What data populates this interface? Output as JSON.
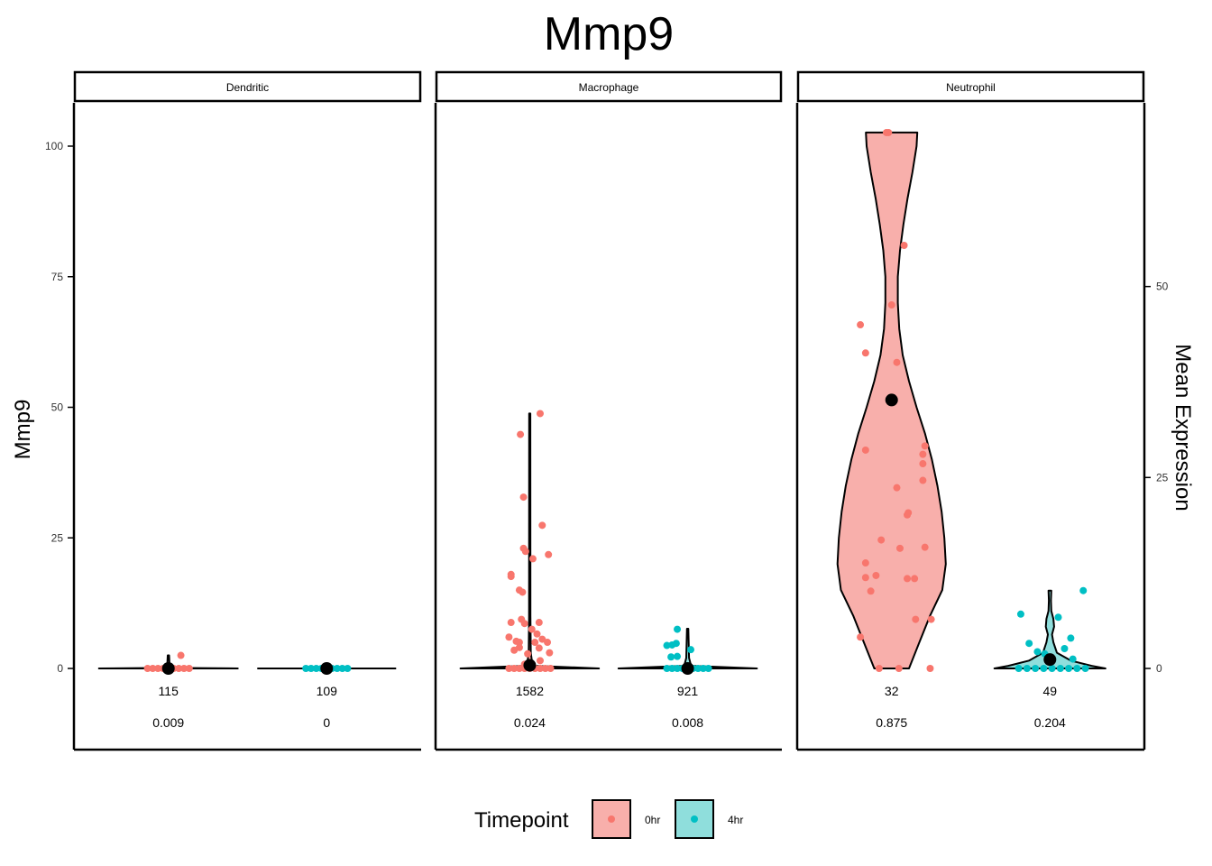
{
  "chart_data": {
    "type": "violin",
    "title": "Mmp9",
    "ylabel": "Mmp9",
    "y2label": "Mean Expression",
    "ylim": [
      -15,
      108
    ],
    "yticks": [
      0,
      25,
      50,
      75,
      100
    ],
    "y2_scale_factor": 0.6838,
    "y2ticks": [
      0,
      25,
      50
    ],
    "legend": {
      "title": "Timepoint",
      "position": "bottom",
      "items": [
        {
          "label": "0hr",
          "fill": "#F8AFAB",
          "point": "#F8766D"
        },
        {
          "label": "4hr",
          "fill": "#8FDEDC",
          "point": "#00BFC4"
        }
      ]
    },
    "groups": [
      "0hr",
      "4hr"
    ],
    "panels": [
      {
        "name": "Dendritic",
        "violins": [
          {
            "group": "0hr",
            "max": 2.5,
            "mean_scaled": 0.0,
            "n": "115",
            "frac": "0.009",
            "profile": [
              [
                0,
                1
              ],
              [
                0.1,
                0.02
              ],
              [
                1,
                0.015
              ],
              [
                2.5,
                0.01
              ]
            ],
            "points": [
              [
                -0.2,
                0
              ],
              [
                -0.15,
                0
              ],
              [
                -0.1,
                0
              ],
              [
                -0.05,
                0
              ],
              [
                0.0,
                0
              ],
              [
                0.05,
                0
              ],
              [
                0.1,
                0
              ],
              [
                0.15,
                0
              ],
              [
                0.2,
                0
              ],
              [
                0.12,
                2.5
              ]
            ]
          },
          {
            "group": "4hr",
            "max": 0,
            "mean_scaled": 0.0,
            "n": "109",
            "frac": "0",
            "profile": [
              [
                0,
                1
              ]
            ],
            "points": [
              [
                -0.2,
                0
              ],
              [
                -0.15,
                0
              ],
              [
                -0.1,
                0
              ],
              [
                -0.05,
                0
              ],
              [
                0.0,
                0
              ],
              [
                0.05,
                0
              ],
              [
                0.1,
                0
              ],
              [
                0.15,
                0
              ],
              [
                0.2,
                0
              ]
            ]
          }
        ]
      },
      {
        "name": "Macrophage",
        "violins": [
          {
            "group": "0hr",
            "max": 48.8,
            "mean_scaled": 0.6,
            "n": "1582",
            "frac": "0.024",
            "profile": [
              [
                0,
                1
              ],
              [
                0.5,
                0.08
              ],
              [
                1.5,
                0.03
              ],
              [
                3,
                0.015
              ],
              [
                10,
                0.01
              ],
              [
                48.8,
                0.008
              ]
            ],
            "points": [
              [
                -0.2,
                0
              ],
              [
                -0.15,
                0
              ],
              [
                -0.1,
                0
              ],
              [
                -0.05,
                0
              ],
              [
                0.0,
                0
              ],
              [
                0.05,
                0
              ],
              [
                0.1,
                0
              ],
              [
                0.15,
                0
              ],
              [
                0.2,
                0
              ],
              [
                0.1,
                48.8
              ],
              [
                -0.09,
                44.8
              ],
              [
                -0.06,
                32.8
              ],
              [
                -0.04,
                22.4
              ],
              [
                -0.06,
                23.0
              ],
              [
                -0.18,
                17.6
              ],
              [
                -0.18,
                18.0
              ],
              [
                0.12,
                27.4
              ],
              [
                0.18,
                21.8
              ],
              [
                0.03,
                21.0
              ],
              [
                -0.1,
                15.0
              ],
              [
                -0.07,
                14.6
              ],
              [
                -0.2,
                6.0
              ],
              [
                -0.1,
                5.0
              ],
              [
                -0.05,
                8.6
              ],
              [
                0.09,
                8.8
              ],
              [
                -0.08,
                9.4
              ],
              [
                -0.1,
                4.0
              ],
              [
                0.05,
                5.0
              ],
              [
                -0.15,
                3.5
              ],
              [
                0.19,
                3.0
              ],
              [
                -0.18,
                8.8
              ],
              [
                0.12,
                5.6
              ],
              [
                0.07,
                6.6
              ],
              [
                -0.13,
                5.2
              ],
              [
                0.02,
                7.5
              ],
              [
                0.09,
                3.9
              ],
              [
                -0.02,
                2.8
              ],
              [
                0.17,
                5.0
              ],
              [
                -0.05,
                0.8
              ],
              [
                0.1,
                1.5
              ]
            ]
          },
          {
            "group": "4hr",
            "max": 7.6,
            "mean_scaled": 0.0,
            "n": "921",
            "frac": "0.008",
            "profile": [
              [
                0,
                1
              ],
              [
                0.5,
                0.05
              ],
              [
                2,
                0.02
              ],
              [
                7.6,
                0.01
              ]
            ],
            "points": [
              [
                -0.2,
                0
              ],
              [
                -0.15,
                0
              ],
              [
                -0.1,
                0
              ],
              [
                -0.05,
                0
              ],
              [
                0.0,
                0
              ],
              [
                0.05,
                0
              ],
              [
                0.1,
                0
              ],
              [
                0.15,
                0
              ],
              [
                0.2,
                0
              ],
              [
                -0.1,
                7.5
              ],
              [
                -0.15,
                4.5
              ],
              [
                -0.11,
                4.8
              ],
              [
                -0.2,
                4.4
              ],
              [
                -0.16,
                2.2
              ],
              [
                -0.1,
                2.3
              ],
              [
                0.03,
                3.6
              ]
            ]
          }
        ]
      },
      {
        "name": "Neutrophil",
        "violins": [
          {
            "group": "0hr",
            "max": 102.6,
            "mean_scaled": 51.4,
            "n": "32",
            "frac": "0.875",
            "profile": [
              [
                0,
                0.25
              ],
              [
                5,
                0.4
              ],
              [
                10,
                0.55
              ],
              [
                15,
                0.73
              ],
              [
                20,
                0.78
              ],
              [
                25,
                0.76
              ],
              [
                30,
                0.72
              ],
              [
                35,
                0.66
              ],
              [
                40,
                0.58
              ],
              [
                45,
                0.48
              ],
              [
                50,
                0.36
              ],
              [
                55,
                0.25
              ],
              [
                60,
                0.16
              ],
              [
                65,
                0.11
              ],
              [
                70,
                0.09
              ],
              [
                75,
                0.09
              ],
              [
                80,
                0.12
              ],
              [
                85,
                0.17
              ],
              [
                90,
                0.23
              ],
              [
                95,
                0.3
              ],
              [
                100,
                0.36
              ],
              [
                102.6,
                0.37
              ]
            ],
            "points": [
              [
                -0.05,
                102.6
              ],
              [
                -0.03,
                102.6
              ],
              [
                0.12,
                81.0
              ],
              [
                0.0,
                69.6
              ],
              [
                -0.3,
                65.8
              ],
              [
                -0.25,
                60.4
              ],
              [
                0.05,
                58.6
              ],
              [
                -0.25,
                41.8
              ],
              [
                0.32,
                42.6
              ],
              [
                0.3,
                39.2
              ],
              [
                0.3,
                36.0
              ],
              [
                0.3,
                41.0
              ],
              [
                0.05,
                34.6
              ],
              [
                0.15,
                29.4
              ],
              [
                0.16,
                29.8
              ],
              [
                -0.1,
                24.6
              ],
              [
                0.08,
                23.0
              ],
              [
                0.32,
                23.2
              ],
              [
                -0.25,
                20.2
              ],
              [
                -0.25,
                17.4
              ],
              [
                -0.15,
                17.8
              ],
              [
                0.15,
                17.2
              ],
              [
                0.22,
                17.2
              ],
              [
                -0.2,
                14.8
              ],
              [
                0.23,
                9.4
              ],
              [
                0.38,
                9.4
              ],
              [
                -0.3,
                6.0
              ],
              [
                -0.12,
                0
              ],
              [
                0.07,
                0
              ],
              [
                0.37,
                0
              ]
            ]
          },
          {
            "group": "4hr",
            "max": 14.9,
            "mean_scaled": 1.7,
            "n": "49",
            "frac": "0.204",
            "profile": [
              [
                0,
                0.8
              ],
              [
                0.5,
                0.6
              ],
              [
                1.5,
                0.3
              ],
              [
                3,
                0.1
              ],
              [
                5,
                0.05
              ],
              [
                6.5,
                0.03
              ],
              [
                8,
                0.06
              ],
              [
                9.5,
                0.05
              ],
              [
                11,
                0.02
              ],
              [
                13,
                0.015
              ],
              [
                14.9,
                0.02
              ]
            ],
            "points": [
              [
                -0.3,
                0
              ],
              [
                -0.22,
                0
              ],
              [
                -0.14,
                0
              ],
              [
                -0.06,
                0
              ],
              [
                0.02,
                0
              ],
              [
                0.1,
                0
              ],
              [
                0.18,
                0
              ],
              [
                0.26,
                0
              ],
              [
                0.34,
                0
              ],
              [
                0.32,
                14.9
              ],
              [
                -0.28,
                10.4
              ],
              [
                0.08,
                9.8
              ],
              [
                0.2,
                5.8
              ],
              [
                -0.2,
                4.8
              ],
              [
                -0.12,
                3.2
              ],
              [
                0.14,
                3.8
              ],
              [
                -0.05,
                2.8
              ],
              [
                0.22,
                1.8
              ]
            ]
          }
        ]
      }
    ]
  }
}
